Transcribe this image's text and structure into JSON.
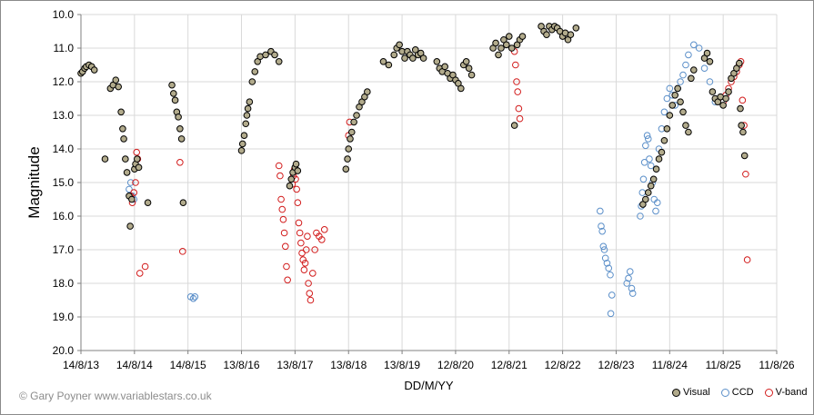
{
  "credit": "© Gary Poyner  www.variablestars.co.uk",
  "chart_data": {
    "type": "scatter",
    "title": "",
    "xlabel": "DD/M/YY",
    "ylabel": "Magnitude",
    "ylim": [
      20.0,
      10.0
    ],
    "y_inverted": true,
    "y_ticks": [
      "10.0",
      "11.0",
      "12.0",
      "13.0",
      "14.0",
      "15.0",
      "16.0",
      "17.0",
      "18.0",
      "19.0",
      "20.0"
    ],
    "x_ticks": [
      "14/8/13",
      "14/8/14",
      "14/8/15",
      "13/8/16",
      "13/8/17",
      "13/8/18",
      "13/8/19",
      "12/8/20",
      "12/8/21",
      "12/8/22",
      "12/8/23",
      "11/8/24",
      "11/8/25",
      "11/8/26"
    ],
    "x_units": "years since 14/8/13",
    "grid": "horizontal and vertical",
    "legend_position": "bottom-right",
    "colors": {
      "visual_fill": "#b2ab8c",
      "visual_edge": "#000000",
      "ccd_edge": "#5b8fc9",
      "vband_edge": "#d21b1b",
      "grid": "#d9d9d9"
    },
    "series": [
      {
        "name": "Visual",
        "marker": "filled-circle",
        "points": [
          [
            0.0,
            11.75
          ],
          [
            0.03,
            11.7
          ],
          [
            0.07,
            11.6
          ],
          [
            0.1,
            11.55
          ],
          [
            0.15,
            11.5
          ],
          [
            0.2,
            11.55
          ],
          [
            0.25,
            11.65
          ],
          [
            0.45,
            14.3
          ],
          [
            0.55,
            12.2
          ],
          [
            0.6,
            12.1
          ],
          [
            0.65,
            11.95
          ],
          [
            0.7,
            12.15
          ],
          [
            0.75,
            12.9
          ],
          [
            0.78,
            13.4
          ],
          [
            0.8,
            13.7
          ],
          [
            0.83,
            14.3
          ],
          [
            0.86,
            14.7
          ],
          [
            0.9,
            15.4
          ],
          [
            0.92,
            16.3
          ],
          [
            0.95,
            15.5
          ],
          [
            1.0,
            14.6
          ],
          [
            1.02,
            14.45
          ],
          [
            1.05,
            14.3
          ],
          [
            1.08,
            14.55
          ],
          [
            1.25,
            15.6
          ],
          [
            1.7,
            12.1
          ],
          [
            1.73,
            12.35
          ],
          [
            1.76,
            12.55
          ],
          [
            1.79,
            12.9
          ],
          [
            1.82,
            13.05
          ],
          [
            1.85,
            13.4
          ],
          [
            1.88,
            13.7
          ],
          [
            1.91,
            15.6
          ],
          [
            3.0,
            14.05
          ],
          [
            3.02,
            13.85
          ],
          [
            3.05,
            13.6
          ],
          [
            3.08,
            13.25
          ],
          [
            3.1,
            13.0
          ],
          [
            3.12,
            12.8
          ],
          [
            3.15,
            12.6
          ],
          [
            3.2,
            12.0
          ],
          [
            3.25,
            11.7
          ],
          [
            3.3,
            11.4
          ],
          [
            3.35,
            11.25
          ],
          [
            3.45,
            11.2
          ],
          [
            3.55,
            11.1
          ],
          [
            3.62,
            11.2
          ],
          [
            3.7,
            11.4
          ],
          [
            3.9,
            15.1
          ],
          [
            3.93,
            14.9
          ],
          [
            3.96,
            14.7
          ],
          [
            4.0,
            14.55
          ],
          [
            4.02,
            14.45
          ],
          [
            4.05,
            14.65
          ],
          [
            4.95,
            14.6
          ],
          [
            4.98,
            14.3
          ],
          [
            5.0,
            14.0
          ],
          [
            5.03,
            13.7
          ],
          [
            5.06,
            13.5
          ],
          [
            5.1,
            13.2
          ],
          [
            5.15,
            13.0
          ],
          [
            5.2,
            12.75
          ],
          [
            5.25,
            12.6
          ],
          [
            5.3,
            12.45
          ],
          [
            5.35,
            12.3
          ],
          [
            5.65,
            11.4
          ],
          [
            5.75,
            11.5
          ],
          [
            5.85,
            11.2
          ],
          [
            5.9,
            11.0
          ],
          [
            5.95,
            10.9
          ],
          [
            6.0,
            11.1
          ],
          [
            6.05,
            11.3
          ],
          [
            6.1,
            11.1
          ],
          [
            6.15,
            11.2
          ],
          [
            6.2,
            11.3
          ],
          [
            6.25,
            11.05
          ],
          [
            6.3,
            11.2
          ],
          [
            6.35,
            11.15
          ],
          [
            6.4,
            11.3
          ],
          [
            6.65,
            11.4
          ],
          [
            6.7,
            11.6
          ],
          [
            6.75,
            11.7
          ],
          [
            6.8,
            11.55
          ],
          [
            6.85,
            11.75
          ],
          [
            6.9,
            11.9
          ],
          [
            6.95,
            11.8
          ],
          [
            7.0,
            11.95
          ],
          [
            7.05,
            12.05
          ],
          [
            7.1,
            12.2
          ],
          [
            7.15,
            11.5
          ],
          [
            7.2,
            11.4
          ],
          [
            7.25,
            11.6
          ],
          [
            7.3,
            11.8
          ],
          [
            7.7,
            11.0
          ],
          [
            7.75,
            10.85
          ],
          [
            7.8,
            11.2
          ],
          [
            7.85,
            11.0
          ],
          [
            7.9,
            10.75
          ],
          [
            7.95,
            10.9
          ],
          [
            8.0,
            10.65
          ],
          [
            8.05,
            11.0
          ],
          [
            8.1,
            13.3
          ],
          [
            8.15,
            10.9
          ],
          [
            8.2,
            10.75
          ],
          [
            8.25,
            10.65
          ],
          [
            8.6,
            10.35
          ],
          [
            8.65,
            10.5
          ],
          [
            8.7,
            10.6
          ],
          [
            8.75,
            10.35
          ],
          [
            8.8,
            10.45
          ],
          [
            8.85,
            10.35
          ],
          [
            8.9,
            10.4
          ],
          [
            8.95,
            10.5
          ],
          [
            9.0,
            10.65
          ],
          [
            9.05,
            10.55
          ],
          [
            9.1,
            10.75
          ],
          [
            9.15,
            10.6
          ],
          [
            9.25,
            10.4
          ],
          [
            10.5,
            15.65
          ],
          [
            10.55,
            15.5
          ],
          [
            10.6,
            15.3
          ],
          [
            10.65,
            15.1
          ],
          [
            10.7,
            14.9
          ],
          [
            10.75,
            14.6
          ],
          [
            10.8,
            14.3
          ],
          [
            10.85,
            14.1
          ],
          [
            10.9,
            13.75
          ],
          [
            10.95,
            13.4
          ],
          [
            11.0,
            13.0
          ],
          [
            11.05,
            12.7
          ],
          [
            11.1,
            12.4
          ],
          [
            11.15,
            12.2
          ],
          [
            11.2,
            12.6
          ],
          [
            11.25,
            12.9
          ],
          [
            11.3,
            13.3
          ],
          [
            11.35,
            13.5
          ],
          [
            11.4,
            11.9
          ],
          [
            11.45,
            11.65
          ],
          [
            11.65,
            11.3
          ],
          [
            11.7,
            11.15
          ],
          [
            11.75,
            11.4
          ],
          [
            11.8,
            12.3
          ],
          [
            11.85,
            12.5
          ],
          [
            11.9,
            12.6
          ],
          [
            11.95,
            12.45
          ],
          [
            12.0,
            12.7
          ],
          [
            12.05,
            12.5
          ],
          [
            12.1,
            12.3
          ],
          [
            12.15,
            11.9
          ],
          [
            12.2,
            11.75
          ],
          [
            12.25,
            11.6
          ],
          [
            12.3,
            11.45
          ],
          [
            12.32,
            12.8
          ],
          [
            12.34,
            13.3
          ],
          [
            12.37,
            13.5
          ],
          [
            12.4,
            14.2
          ]
        ]
      },
      {
        "name": "CCD",
        "marker": "open-circle",
        "points": [
          [
            0.9,
            15.2
          ],
          [
            0.93,
            15.0
          ],
          [
            0.96,
            15.4
          ],
          [
            0.99,
            15.5
          ],
          [
            2.05,
            18.4
          ],
          [
            2.1,
            18.45
          ],
          [
            2.13,
            18.4
          ],
          [
            9.7,
            15.85
          ],
          [
            9.72,
            16.3
          ],
          [
            9.74,
            16.45
          ],
          [
            9.76,
            16.9
          ],
          [
            9.78,
            17.0
          ],
          [
            9.8,
            17.25
          ],
          [
            9.83,
            17.4
          ],
          [
            9.86,
            17.55
          ],
          [
            9.89,
            17.75
          ],
          [
            9.92,
            18.35
          ],
          [
            9.9,
            18.9
          ],
          [
            10.2,
            18.0
          ],
          [
            10.23,
            17.85
          ],
          [
            10.26,
            17.65
          ],
          [
            10.29,
            18.15
          ],
          [
            10.31,
            18.3
          ],
          [
            10.45,
            16.0
          ],
          [
            10.47,
            15.7
          ],
          [
            10.49,
            15.3
          ],
          [
            10.51,
            14.9
          ],
          [
            10.53,
            14.4
          ],
          [
            10.55,
            13.9
          ],
          [
            10.58,
            13.6
          ],
          [
            10.6,
            13.7
          ],
          [
            10.62,
            14.3
          ],
          [
            10.65,
            14.5
          ],
          [
            10.68,
            15.0
          ],
          [
            10.71,
            15.5
          ],
          [
            10.74,
            15.85
          ],
          [
            10.77,
            15.6
          ],
          [
            10.8,
            14.0
          ],
          [
            10.85,
            13.4
          ],
          [
            10.9,
            12.9
          ],
          [
            10.95,
            12.5
          ],
          [
            11.0,
            12.2
          ],
          [
            11.05,
            12.4
          ],
          [
            11.1,
            12.7
          ],
          [
            11.15,
            12.2
          ],
          [
            11.2,
            12.0
          ],
          [
            11.25,
            11.8
          ],
          [
            11.3,
            11.5
          ],
          [
            11.35,
            11.2
          ],
          [
            11.45,
            10.9
          ],
          [
            11.55,
            11.0
          ],
          [
            11.65,
            11.6
          ],
          [
            11.75,
            12.0
          ],
          [
            11.85,
            12.6
          ]
        ]
      },
      {
        "name": "V-band",
        "marker": "open-circle",
        "points": [
          [
            0.93,
            15.4
          ],
          [
            0.96,
            15.6
          ],
          [
            0.99,
            15.3
          ],
          [
            1.02,
            15.0
          ],
          [
            1.04,
            14.1
          ],
          [
            1.06,
            14.3
          ],
          [
            1.1,
            17.7
          ],
          [
            1.2,
            17.5
          ],
          [
            1.85,
            14.4
          ],
          [
            1.9,
            17.05
          ],
          [
            3.7,
            14.5
          ],
          [
            3.72,
            14.8
          ],
          [
            3.74,
            15.5
          ],
          [
            3.76,
            15.8
          ],
          [
            3.78,
            16.1
          ],
          [
            3.8,
            16.5
          ],
          [
            3.82,
            16.9
          ],
          [
            3.84,
            17.5
          ],
          [
            3.86,
            17.9
          ],
          [
            3.95,
            15.05
          ],
          [
            3.97,
            14.8
          ],
          [
            3.99,
            14.6
          ],
          [
            4.01,
            14.9
          ],
          [
            4.03,
            15.2
          ],
          [
            4.05,
            15.6
          ],
          [
            4.07,
            16.2
          ],
          [
            4.09,
            16.5
          ],
          [
            4.11,
            16.8
          ],
          [
            4.13,
            17.1
          ],
          [
            4.15,
            17.3
          ],
          [
            4.17,
            17.6
          ],
          [
            4.19,
            17.4
          ],
          [
            4.21,
            17.0
          ],
          [
            4.23,
            16.6
          ],
          [
            4.25,
            18.0
          ],
          [
            4.27,
            18.3
          ],
          [
            4.29,
            18.5
          ],
          [
            4.33,
            17.7
          ],
          [
            4.37,
            17.0
          ],
          [
            4.4,
            16.5
          ],
          [
            4.45,
            16.6
          ],
          [
            4.5,
            16.7
          ],
          [
            4.55,
            16.4
          ],
          [
            5.0,
            13.6
          ],
          [
            5.02,
            13.2
          ],
          [
            8.1,
            11.1
          ],
          [
            8.12,
            11.5
          ],
          [
            8.14,
            12.0
          ],
          [
            8.16,
            12.3
          ],
          [
            8.18,
            12.8
          ],
          [
            8.2,
            13.1
          ],
          [
            12.0,
            12.6
          ],
          [
            12.05,
            12.4
          ],
          [
            12.1,
            12.2
          ],
          [
            12.15,
            12.0
          ],
          [
            12.2,
            11.85
          ],
          [
            12.25,
            11.7
          ],
          [
            12.3,
            11.5
          ],
          [
            12.33,
            11.4
          ],
          [
            12.36,
            12.55
          ],
          [
            12.39,
            13.3
          ],
          [
            12.42,
            14.75
          ],
          [
            12.45,
            17.3
          ]
        ]
      }
    ]
  }
}
